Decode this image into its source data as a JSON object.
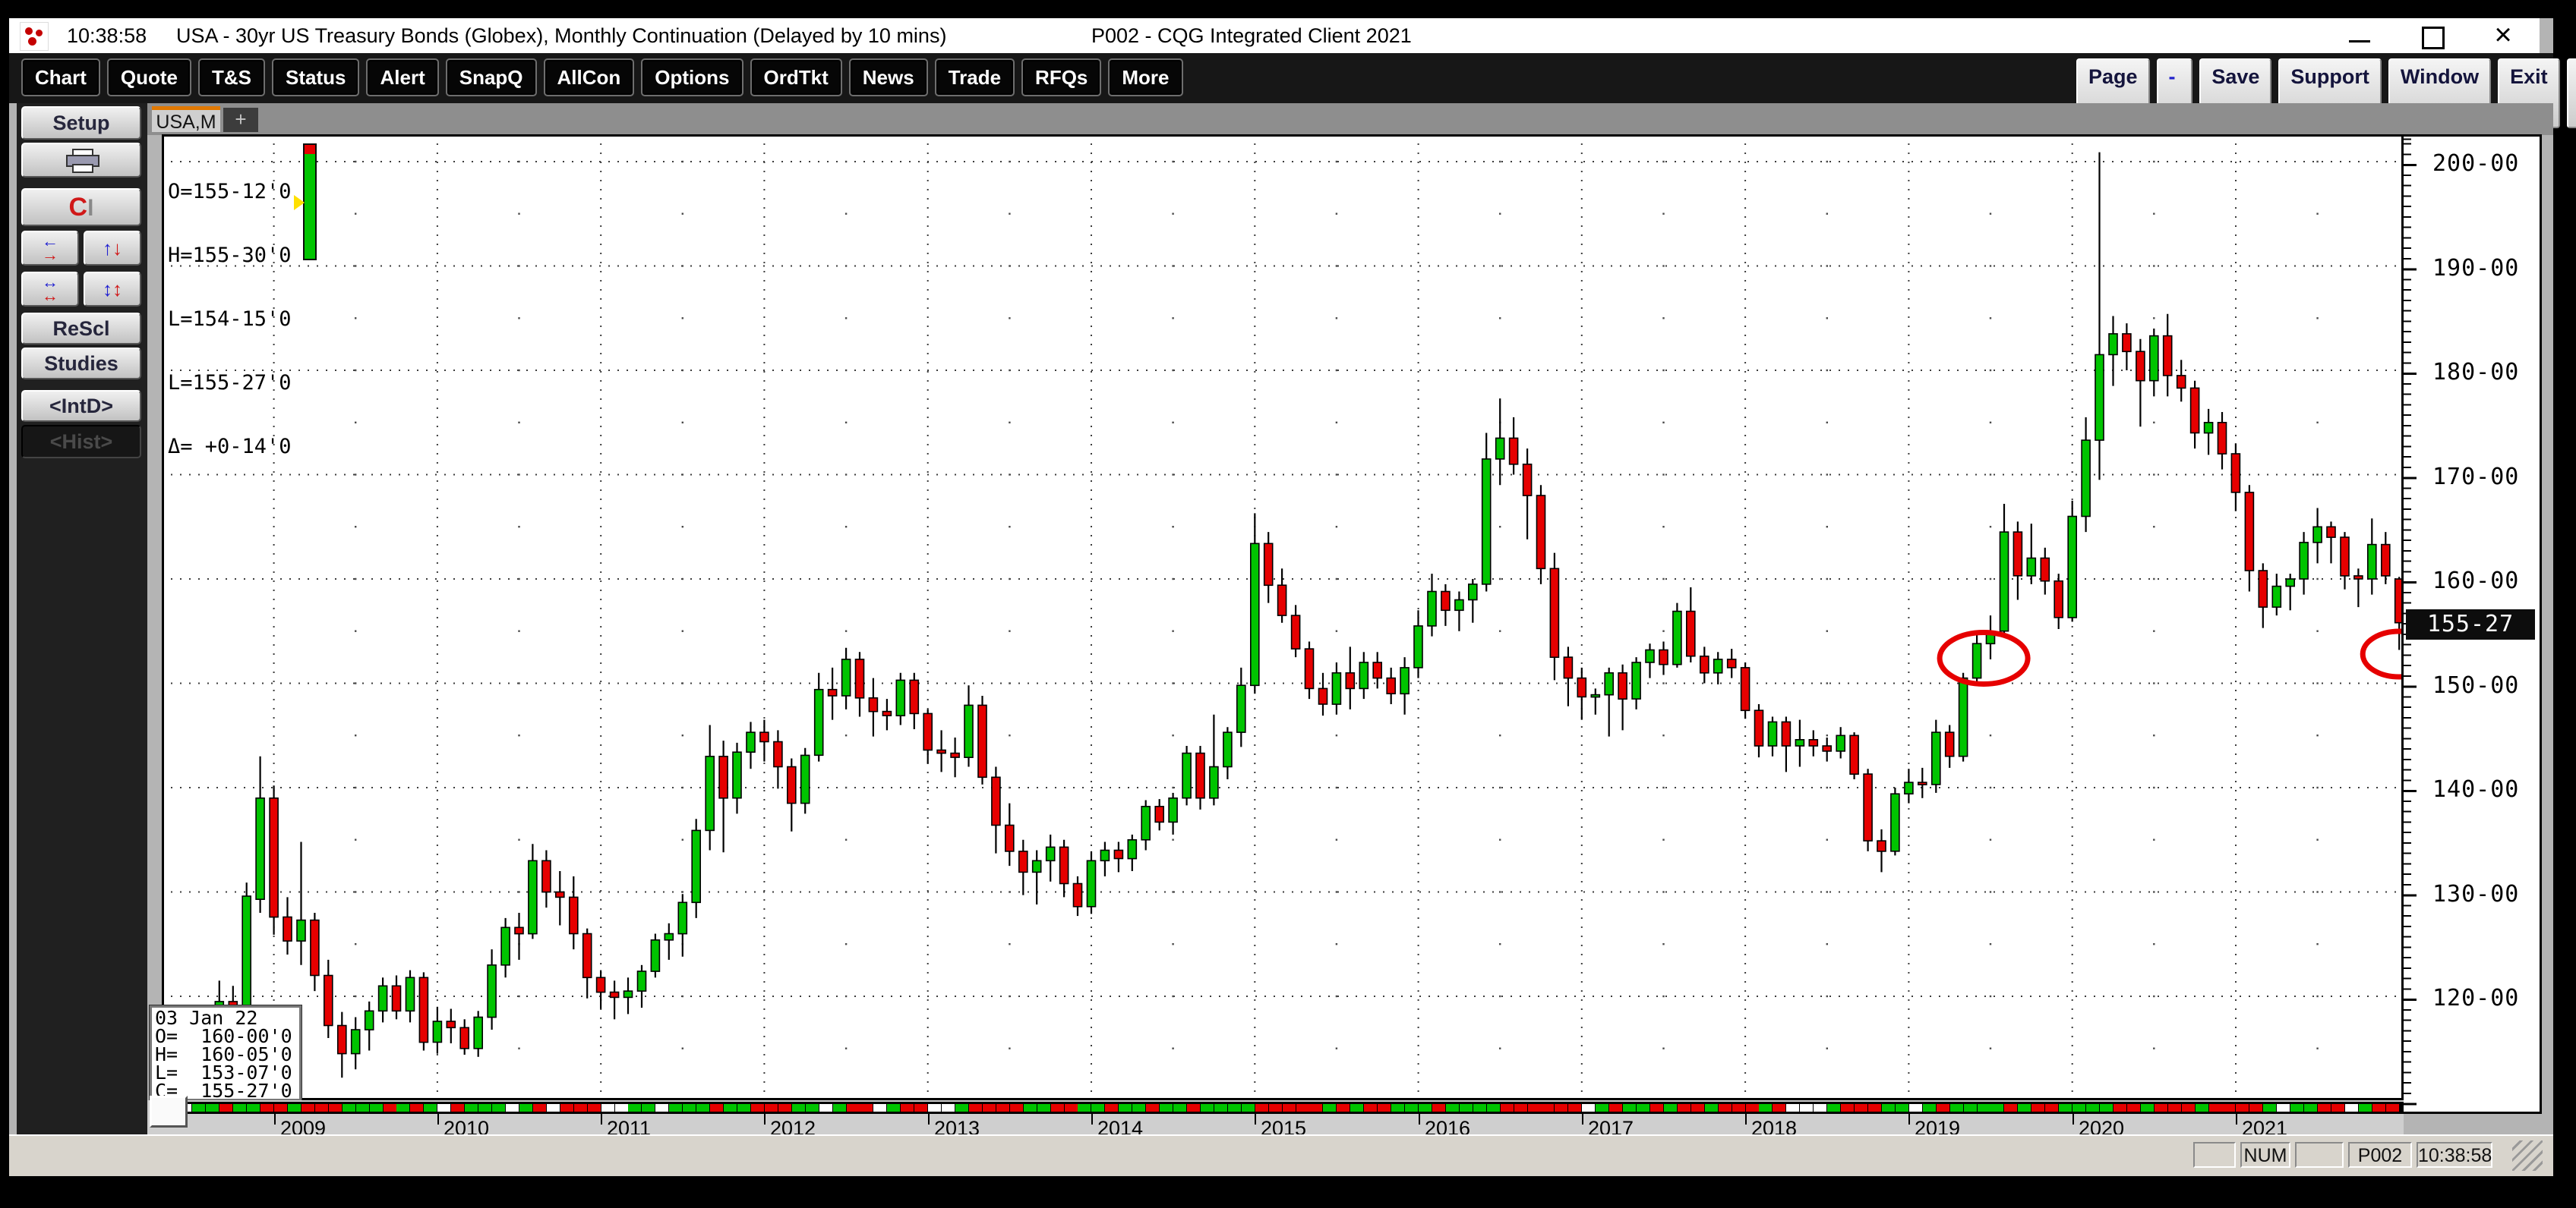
{
  "window": {
    "titlebar": {
      "time": "10:38:58",
      "title": "USA - 30yr US Treasury Bonds (Globex), Monthly Continuation (Delayed by 10 mins)",
      "suffix": "P002 - CQG Integrated Client 2021",
      "controls": [
        "minimize",
        "maximize",
        "close"
      ],
      "app_icon": "cqg-logo"
    }
  },
  "toolbar": {
    "left_buttons": [
      "Chart",
      "Quote",
      "T&S",
      "Status",
      "Alert",
      "SnapQ",
      "AllCon",
      "Options",
      "OrdTkt",
      "News",
      "Trade",
      "RFQs",
      "More"
    ],
    "right_buttons": [
      {
        "id": "page",
        "label": "Page"
      },
      {
        "id": "adjust",
        "minus": "-",
        "plus": "+"
      },
      {
        "id": "save",
        "label": "Save"
      },
      {
        "id": "support",
        "label": "Support"
      },
      {
        "id": "window",
        "label": "Window"
      },
      {
        "id": "exit",
        "label": "Exit"
      },
      {
        "id": "cascade",
        "icon": "cascade-windows-icon"
      },
      {
        "id": "help",
        "label": "?"
      }
    ]
  },
  "sidebar": {
    "buttons": {
      "setup": {
        "label": "Setup"
      },
      "print": {
        "icon": "printer-icon"
      },
      "magnet": {
        "icon": "magnet-icon"
      },
      "swap_h": {
        "icon": "swap-horizontal-icon"
      },
      "swap_v": {
        "icon": "swap-vertical-icon"
      },
      "expand_h": {
        "icon": "expand-horizontal-icon"
      },
      "expand_v": {
        "icon": "expand-vertical-icon"
      },
      "rescl": {
        "label": "ReScl"
      },
      "studies": {
        "label": "Studies"
      },
      "intd": {
        "label": "<IntD>"
      },
      "hist": {
        "label": "<Hist>",
        "state": "pressed"
      }
    }
  },
  "tabs": {
    "active_label": "USA,M",
    "add_label": "+"
  },
  "quote_panel": {
    "lines": [
      "O=155-12'0",
      "H=155-30'0",
      "L=154-15'0",
      "L=155-27'0",
      "Δ= +0-14'0"
    ],
    "indicator": {
      "bar_color": "#00c400",
      "cap_color": "#e60000",
      "pointer_color": "#ffe000"
    }
  },
  "tooltip": {
    "lines": [
      "03 Jan 22",
      "O=  160-00'0",
      "H=  160-05'0",
      "L=  153-07'0",
      "C=  155-27'0"
    ]
  },
  "chart": {
    "price_axis": {
      "labels": [
        "200-00",
        "190-00",
        "180-00",
        "170-00",
        "160-00",
        "150-00",
        "140-00",
        "130-00",
        "120-00"
      ],
      "last_price": "155-27"
    },
    "x_axis": {
      "years": [
        "2009",
        "2010",
        "2011",
        "2012",
        "2013",
        "2014",
        "2015",
        "2016",
        "2017",
        "2018",
        "2019",
        "2020",
        "2021"
      ]
    }
  },
  "status_bar": {
    "panels": [
      "",
      "NUM",
      "",
      "P002",
      "10:38:58"
    ]
  },
  "chart_data": {
    "type": "bar",
    "subtype": "candlestick-ohlc",
    "title": "USA - 30yr US Treasury Bonds (Globex), Monthly Continuation",
    "x_start": "2008-06",
    "x_interval": "month",
    "price_format": "points-32nds",
    "ylim": [
      110,
      202
    ],
    "y_tick_step": 10,
    "up_color": "#00c400",
    "down_color": "#e60000",
    "candles_ohlc": [
      [
        118.0,
        118.5,
        114.0,
        115.5
      ],
      [
        115.5,
        116.5,
        112.8,
        114.8
      ],
      [
        114.8,
        117.8,
        113.5,
        117.0
      ],
      [
        117.0,
        121.5,
        114.5,
        119.5
      ],
      [
        119.5,
        121.0,
        110.5,
        116.0
      ],
      [
        116.0,
        130.9,
        114.6,
        129.6
      ],
      [
        129.3,
        143.0,
        128.0,
        139.0
      ],
      [
        139.0,
        140.2,
        125.9,
        127.6
      ],
      [
        127.6,
        129.5,
        124.0,
        125.3
      ],
      [
        125.3,
        134.8,
        123.0,
        127.3
      ],
      [
        127.3,
        128.0,
        120.5,
        122.0
      ],
      [
        122.0,
        123.5,
        116.0,
        117.2
      ],
      [
        117.2,
        118.5,
        112.2,
        114.5
      ],
      [
        114.5,
        118.0,
        113.0,
        116.8
      ],
      [
        116.8,
        119.5,
        114.8,
        118.6
      ],
      [
        118.6,
        121.8,
        117.5,
        121.0
      ],
      [
        121.0,
        122.0,
        117.8,
        118.6
      ],
      [
        118.6,
        122.5,
        117.5,
        121.8
      ],
      [
        121.8,
        122.3,
        114.8,
        115.6
      ],
      [
        115.6,
        119.0,
        114.5,
        117.6
      ],
      [
        117.6,
        118.8,
        115.5,
        117.0
      ],
      [
        117.0,
        117.8,
        114.4,
        115.0
      ],
      [
        115.0,
        118.6,
        114.2,
        118.0
      ],
      [
        118.0,
        124.5,
        116.8,
        123.0
      ],
      [
        123.0,
        127.5,
        121.8,
        126.6
      ],
      [
        126.6,
        128.0,
        123.5,
        126.0
      ],
      [
        126.0,
        134.6,
        125.5,
        133.0
      ],
      [
        133.0,
        134.0,
        128.5,
        130.0
      ],
      [
        130.0,
        132.0,
        126.8,
        129.5
      ],
      [
        129.5,
        131.5,
        124.5,
        126.0
      ],
      [
        126.0,
        126.5,
        119.8,
        121.8
      ],
      [
        121.8,
        122.5,
        118.8,
        120.4
      ],
      [
        120.4,
        121.5,
        117.8,
        119.9
      ],
      [
        119.9,
        121.8,
        118.3,
        120.5
      ],
      [
        120.5,
        123.0,
        118.9,
        122.4
      ],
      [
        122.4,
        126.0,
        121.8,
        125.4
      ],
      [
        125.4,
        127.0,
        123.5,
        126.0
      ],
      [
        126.0,
        129.8,
        123.8,
        129.0
      ],
      [
        129.0,
        137.0,
        127.5,
        135.9
      ],
      [
        135.9,
        146.0,
        134.0,
        143.0
      ],
      [
        143.0,
        144.5,
        133.8,
        139.0
      ],
      [
        139.0,
        144.3,
        137.5,
        143.4
      ],
      [
        143.4,
        146.3,
        141.8,
        145.3
      ],
      [
        145.3,
        146.5,
        142.5,
        144.4
      ],
      [
        144.4,
        145.5,
        139.9,
        142.0
      ],
      [
        142.0,
        142.8,
        135.8,
        138.5
      ],
      [
        138.5,
        143.8,
        137.5,
        143.1
      ],
      [
        143.1,
        151.0,
        142.5,
        149.4
      ],
      [
        149.4,
        151.5,
        146.5,
        148.8
      ],
      [
        148.8,
        153.4,
        147.5,
        152.3
      ],
      [
        152.3,
        153.0,
        146.8,
        148.6
      ],
      [
        148.6,
        150.5,
        144.9,
        147.3
      ],
      [
        147.3,
        148.5,
        145.5,
        146.9
      ],
      [
        146.9,
        151.0,
        146.0,
        150.3
      ],
      [
        150.3,
        151.0,
        145.6,
        147.1
      ],
      [
        147.1,
        147.5,
        142.3,
        143.6
      ],
      [
        143.6,
        145.5,
        141.5,
        143.3
      ],
      [
        143.3,
        144.8,
        141.0,
        142.9
      ],
      [
        142.9,
        149.8,
        142.0,
        147.9
      ],
      [
        147.9,
        148.8,
        140.3,
        141.0
      ],
      [
        141.0,
        142.0,
        133.7,
        136.4
      ],
      [
        136.4,
        138.5,
        132.5,
        133.9
      ],
      [
        133.9,
        135.0,
        129.7,
        131.9
      ],
      [
        131.9,
        134.0,
        128.8,
        133.0
      ],
      [
        133.0,
        135.5,
        131.0,
        134.3
      ],
      [
        134.3,
        135.0,
        129.5,
        130.8
      ],
      [
        130.8,
        131.5,
        127.7,
        128.6
      ],
      [
        128.6,
        133.9,
        127.9,
        133.0
      ],
      [
        133.0,
        134.8,
        131.5,
        134.0
      ],
      [
        134.0,
        134.8,
        131.9,
        133.2
      ],
      [
        133.2,
        135.5,
        132.0,
        135.0
      ],
      [
        135.0,
        138.8,
        134.0,
        138.2
      ],
      [
        138.2,
        138.9,
        135.9,
        136.7
      ],
      [
        136.7,
        139.5,
        135.5,
        139.0
      ],
      [
        139.0,
        144.0,
        138.3,
        143.3
      ],
      [
        143.3,
        144.0,
        137.9,
        139.0
      ],
      [
        139.0,
        147.0,
        138.3,
        142.0
      ],
      [
        142.0,
        145.8,
        140.8,
        145.3
      ],
      [
        145.3,
        151.5,
        143.9,
        149.8
      ],
      [
        149.8,
        166.3,
        149.0,
        163.4
      ],
      [
        163.4,
        164.5,
        157.7,
        159.4
      ],
      [
        159.4,
        161.0,
        155.8,
        156.5
      ],
      [
        156.5,
        157.5,
        152.5,
        153.3
      ],
      [
        153.3,
        154.0,
        148.5,
        149.5
      ],
      [
        149.5,
        151.0,
        146.9,
        148.0
      ],
      [
        148.0,
        152.0,
        147.0,
        151.0
      ],
      [
        151.0,
        153.5,
        147.5,
        149.5
      ],
      [
        149.5,
        153.0,
        148.5,
        152.0
      ],
      [
        152.0,
        153.0,
        149.5,
        150.5
      ],
      [
        150.5,
        151.5,
        148.0,
        149.0
      ],
      [
        149.0,
        152.5,
        147.0,
        151.5
      ],
      [
        151.5,
        157.0,
        150.5,
        155.5
      ],
      [
        155.5,
        160.5,
        154.5,
        158.8
      ],
      [
        158.8,
        159.5,
        155.5,
        157.0
      ],
      [
        157.0,
        158.8,
        155.0,
        158.0
      ],
      [
        158.0,
        160.0,
        155.8,
        159.5
      ],
      [
        159.5,
        174.0,
        158.8,
        171.5
      ],
      [
        171.5,
        177.3,
        169.0,
        173.5
      ],
      [
        173.5,
        175.5,
        170.0,
        171.0
      ],
      [
        171.0,
        172.5,
        163.8,
        168.0
      ],
      [
        168.0,
        169.0,
        159.5,
        161.0
      ],
      [
        161.0,
        162.5,
        150.3,
        152.5
      ],
      [
        152.5,
        153.5,
        147.8,
        150.5
      ],
      [
        150.5,
        151.5,
        146.5,
        148.7
      ],
      [
        148.7,
        149.5,
        147.0,
        148.9
      ],
      [
        148.9,
        151.5,
        144.9,
        151.0
      ],
      [
        151.0,
        151.8,
        145.5,
        148.5
      ],
      [
        148.5,
        152.5,
        147.5,
        152.0
      ],
      [
        152.0,
        153.8,
        150.5,
        153.2
      ],
      [
        153.2,
        154.0,
        150.8,
        151.8
      ],
      [
        151.8,
        157.7,
        151.5,
        156.9
      ],
      [
        156.9,
        159.2,
        152.0,
        152.6
      ],
      [
        152.6,
        153.5,
        150.0,
        151.0
      ],
      [
        151.0,
        153.0,
        149.9,
        152.3
      ],
      [
        152.3,
        153.3,
        150.5,
        151.5
      ],
      [
        151.5,
        152.0,
        146.6,
        147.4
      ],
      [
        147.4,
        148.0,
        142.9,
        144.0
      ],
      [
        144.0,
        146.8,
        143.0,
        146.3
      ],
      [
        146.3,
        146.8,
        141.5,
        144.0
      ],
      [
        144.0,
        146.5,
        142.0,
        144.6
      ],
      [
        144.6,
        145.5,
        143.0,
        144.0
      ],
      [
        144.0,
        144.8,
        142.5,
        143.5
      ],
      [
        143.5,
        145.8,
        142.8,
        145.0
      ],
      [
        145.0,
        145.3,
        140.8,
        141.3
      ],
      [
        141.3,
        141.8,
        133.9,
        134.9
      ],
      [
        134.9,
        136.0,
        131.9,
        133.9
      ],
      [
        133.9,
        140.0,
        133.5,
        139.4
      ],
      [
        139.4,
        141.8,
        138.5,
        140.5
      ],
      [
        140.5,
        141.9,
        139.0,
        140.3
      ],
      [
        140.3,
        146.5,
        139.5,
        145.3
      ],
      [
        145.3,
        146.0,
        141.9,
        143.0
      ],
      [
        143.0,
        151.0,
        142.5,
        150.5
      ],
      [
        150.5,
        155.0,
        150.0,
        153.8
      ],
      [
        153.8,
        156.5,
        152.3,
        155.0
      ],
      [
        155.0,
        167.2,
        154.8,
        164.5
      ],
      [
        164.5,
        165.5,
        158.0,
        160.3
      ],
      [
        160.3,
        165.3,
        159.5,
        162.0
      ],
      [
        162.0,
        163.0,
        158.5,
        159.8
      ],
      [
        159.8,
        160.5,
        155.2,
        156.3
      ],
      [
        156.3,
        167.5,
        155.9,
        166.0
      ],
      [
        166.0,
        175.5,
        164.5,
        173.3
      ],
      [
        173.3,
        200.9,
        169.5,
        181.5
      ],
      [
        181.5,
        185.2,
        178.5,
        183.5
      ],
      [
        183.5,
        184.5,
        180.0,
        181.8
      ],
      [
        181.8,
        183.0,
        174.6,
        179.0
      ],
      [
        179.0,
        184.0,
        177.5,
        183.3
      ],
      [
        183.3,
        185.4,
        177.5,
        179.5
      ],
      [
        179.5,
        181.0,
        177.0,
        178.3
      ],
      [
        178.3,
        179.0,
        172.5,
        174.0
      ],
      [
        174.0,
        176.3,
        171.9,
        175.0
      ],
      [
        175.0,
        176.0,
        170.5,
        172.0
      ],
      [
        172.0,
        173.0,
        166.5,
        168.3
      ],
      [
        168.3,
        169.0,
        158.8,
        160.8
      ],
      [
        160.8,
        161.5,
        155.3,
        157.3
      ],
      [
        157.3,
        160.5,
        156.5,
        159.3
      ],
      [
        159.3,
        160.5,
        157.0,
        160.0
      ],
      [
        160.0,
        164.5,
        158.5,
        163.5
      ],
      [
        163.5,
        166.8,
        161.5,
        165.0
      ],
      [
        165.0,
        165.5,
        161.5,
        164.0
      ],
      [
        164.0,
        164.5,
        159.0,
        160.3
      ],
      [
        160.3,
        161.0,
        157.3,
        160.0
      ],
      [
        160.0,
        165.8,
        158.5,
        163.3
      ],
      [
        163.3,
        164.5,
        159.5,
        160.3
      ],
      [
        160.0,
        160.2,
        153.2,
        155.8
      ]
    ],
    "annotations": [
      {
        "type": "ellipse",
        "candle_index": 132.5,
        "price": 152.4,
        "rx": 58,
        "ry": 34,
        "color": "#e60000"
      },
      {
        "type": "ellipse",
        "candle_index": 163.0,
        "price": 152.8,
        "rx": 48,
        "ry": 30,
        "color": "#e60000"
      }
    ],
    "current_bar": {
      "date": "03 Jan 22",
      "open": "160-00'0",
      "high": "160-05'0",
      "low": "153-07'0",
      "close": "155-27'0"
    }
  }
}
